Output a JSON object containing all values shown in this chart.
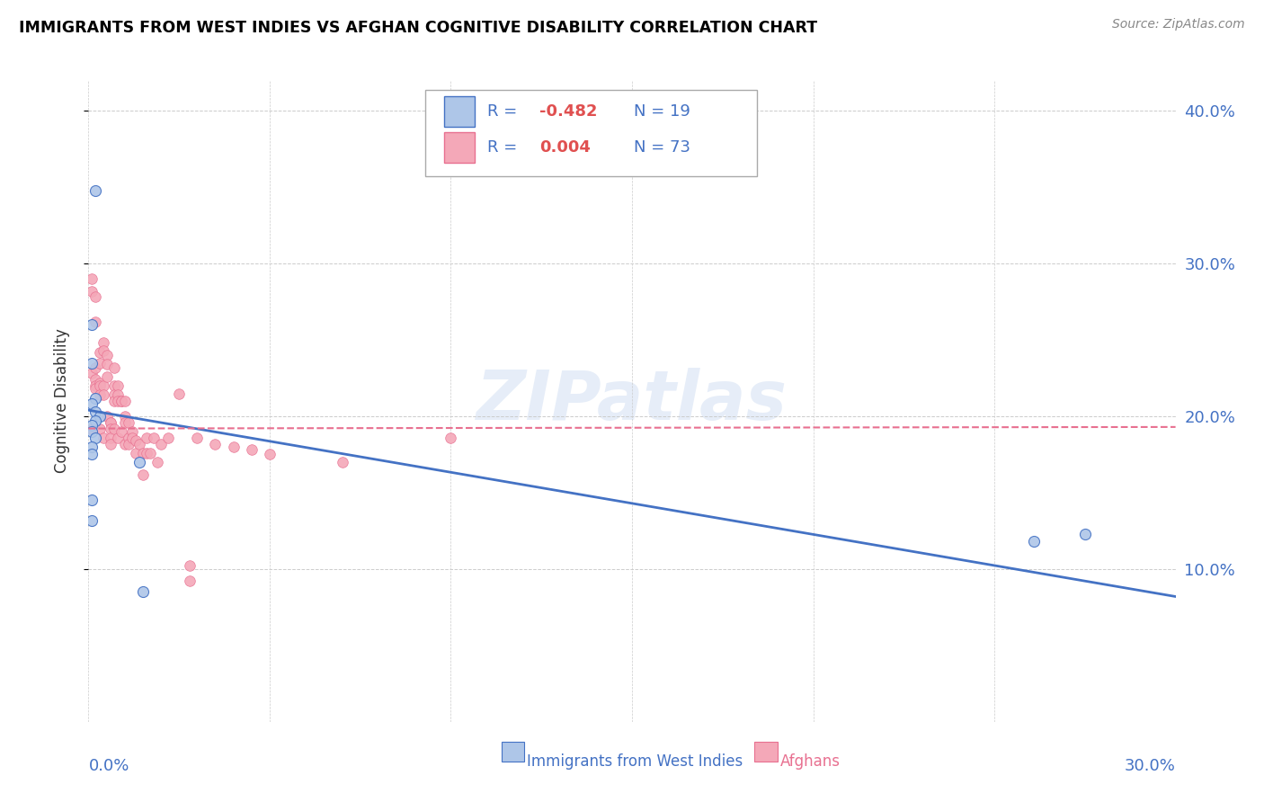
{
  "title": "IMMIGRANTS FROM WEST INDIES VS AFGHAN COGNITIVE DISABILITY CORRELATION CHART",
  "source": "Source: ZipAtlas.com",
  "ylabel": "Cognitive Disability",
  "xlim": [
    0.0,
    0.3
  ],
  "ylim": [
    0.0,
    0.42
  ],
  "color_blue": "#aec6e8",
  "color_pink": "#f4a8b8",
  "color_blue_dark": "#4472c4",
  "color_pink_dark": "#e87090",
  "color_text": "#4472c4",
  "watermark": "ZIPatlas",
  "west_indies_x": [
    0.002,
    0.001,
    0.001,
    0.002,
    0.001,
    0.002,
    0.003,
    0.002,
    0.001,
    0.001,
    0.002,
    0.001,
    0.001,
    0.001,
    0.014,
    0.001,
    0.015,
    0.261,
    0.275
  ],
  "west_indies_y": [
    0.348,
    0.26,
    0.235,
    0.212,
    0.208,
    0.203,
    0.2,
    0.197,
    0.194,
    0.19,
    0.186,
    0.18,
    0.175,
    0.145,
    0.17,
    0.132,
    0.085,
    0.118,
    0.123
  ],
  "afghans_x": [
    0.001,
    0.001,
    0.001,
    0.001,
    0.002,
    0.002,
    0.002,
    0.002,
    0.002,
    0.002,
    0.003,
    0.003,
    0.003,
    0.003,
    0.003,
    0.003,
    0.004,
    0.004,
    0.004,
    0.004,
    0.004,
    0.005,
    0.005,
    0.005,
    0.005,
    0.006,
    0.006,
    0.006,
    0.006,
    0.006,
    0.007,
    0.007,
    0.007,
    0.007,
    0.007,
    0.008,
    0.008,
    0.008,
    0.008,
    0.009,
    0.009,
    0.009,
    0.01,
    0.01,
    0.01,
    0.01,
    0.011,
    0.011,
    0.011,
    0.012,
    0.012,
    0.013,
    0.013,
    0.014,
    0.015,
    0.015,
    0.016,
    0.016,
    0.017,
    0.018,
    0.019,
    0.02,
    0.022,
    0.025,
    0.028,
    0.028,
    0.03,
    0.035,
    0.04,
    0.045,
    0.05,
    0.07,
    0.1
  ],
  "afghans_y": [
    0.29,
    0.282,
    0.228,
    0.192,
    0.278,
    0.262,
    0.232,
    0.224,
    0.22,
    0.218,
    0.242,
    0.235,
    0.222,
    0.22,
    0.214,
    0.192,
    0.248,
    0.243,
    0.22,
    0.214,
    0.186,
    0.24,
    0.234,
    0.226,
    0.2,
    0.196,
    0.196,
    0.192,
    0.186,
    0.182,
    0.232,
    0.22,
    0.214,
    0.21,
    0.192,
    0.22,
    0.214,
    0.21,
    0.186,
    0.21,
    0.21,
    0.19,
    0.21,
    0.2,
    0.196,
    0.182,
    0.196,
    0.186,
    0.182,
    0.19,
    0.186,
    0.184,
    0.176,
    0.182,
    0.176,
    0.162,
    0.186,
    0.176,
    0.176,
    0.186,
    0.17,
    0.182,
    0.186,
    0.215,
    0.102,
    0.092,
    0.186,
    0.182,
    0.18,
    0.178,
    0.175,
    0.17,
    0.186
  ],
  "blue_line_x": [
    0.0,
    0.3
  ],
  "blue_line_y_start": 0.204,
  "blue_line_y_end": 0.082,
  "pink_line_x": [
    0.0,
    0.3
  ],
  "pink_line_y_start": 0.192,
  "pink_line_y_end": 0.193
}
